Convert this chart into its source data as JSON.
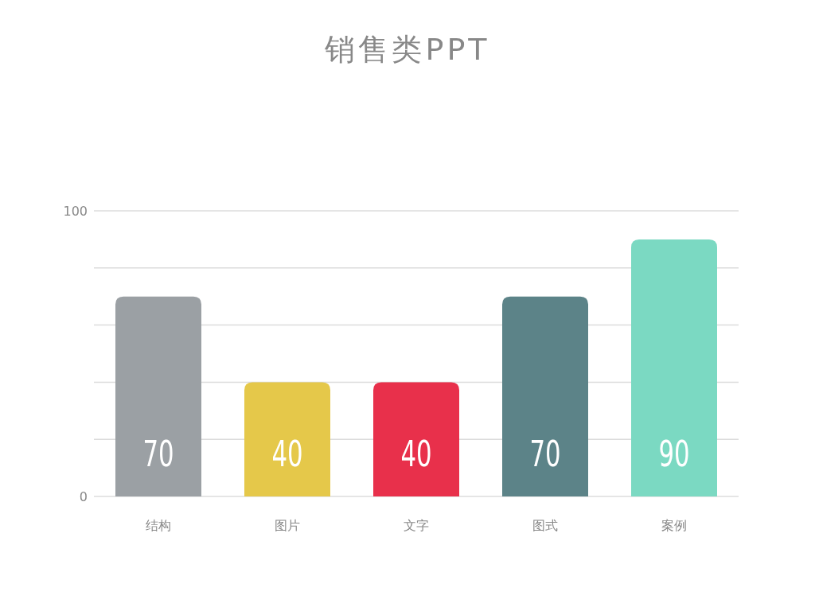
{
  "chart_data": {
    "type": "bar",
    "title": "销售类PPT",
    "categories": [
      "结构",
      "图片",
      "文字",
      "图式",
      "案例"
    ],
    "values": [
      70,
      40,
      40,
      70,
      90
    ],
    "colors": [
      "#9ba0a4",
      "#e5c84a",
      "#e8304b",
      "#5c8388",
      "#7bd9c2"
    ],
    "ylim": [
      0,
      100
    ],
    "yticks": [
      0,
      {
        "value": 20,
        "label": null
      },
      {
        "value": 40,
        "label": null
      },
      {
        "value": 60,
        "label": null
      },
      {
        "value": 80,
        "label": null
      },
      100
    ],
    "grid": "y",
    "data_labels": true
  }
}
